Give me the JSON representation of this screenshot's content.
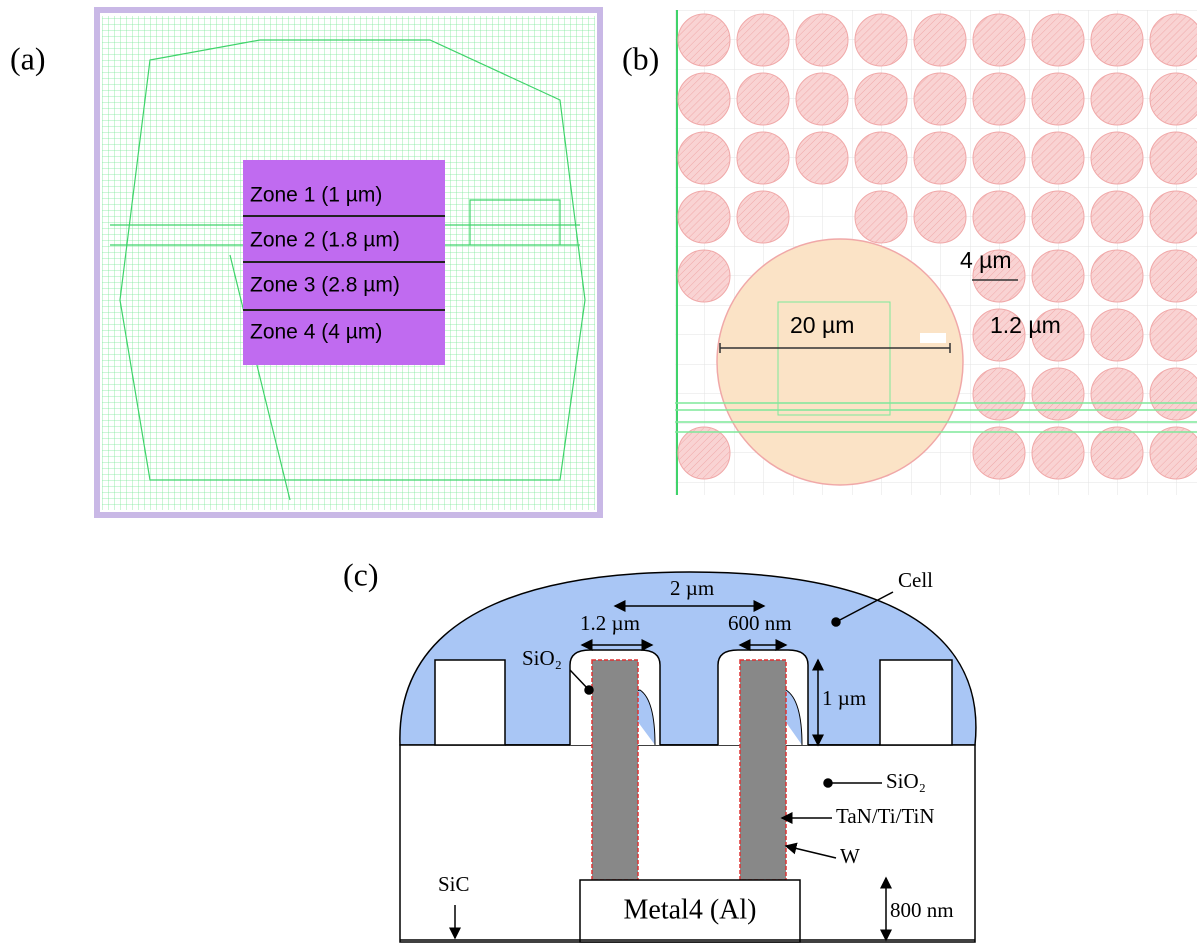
{
  "panel_a": {
    "label": "(a)",
    "zones": [
      "Zone 1 (1 µm)",
      "Zone 2 (1.8 µm)",
      "Zone 3 (2.8 µm)",
      "Zone 4 (4 µm)"
    ]
  },
  "panel_b": {
    "label": "(b)",
    "small_scale": "4 µm",
    "large_scale": "20 µm",
    "gap": "1.2 µm"
  },
  "panel_c": {
    "label": "(c)",
    "pitch": "2 µm",
    "cell": "Cell",
    "trench_width": "1.2 µm",
    "via_width": "600 nm",
    "sio2_left": "SiO₂",
    "height": "1 µm",
    "sio2_right": "SiO₂",
    "liner": "TaN/Ti/TiN",
    "via": "W",
    "substrate": "SiC",
    "metal": "Metal4 (Al)",
    "metal_height": "800 nm"
  }
}
